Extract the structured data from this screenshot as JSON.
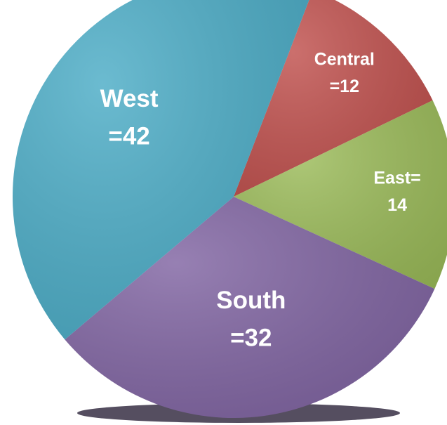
{
  "chart_data": {
    "type": "pie",
    "categories": [
      "Central",
      "East=",
      "South",
      "West"
    ],
    "values": [
      12,
      14,
      32,
      42
    ],
    "value_labels": [
      "=12",
      "14",
      "=32",
      "=42"
    ],
    "colors": [
      "#c0504d",
      "#9bbb59",
      "#8064a2",
      "#4bacc6"
    ]
  }
}
